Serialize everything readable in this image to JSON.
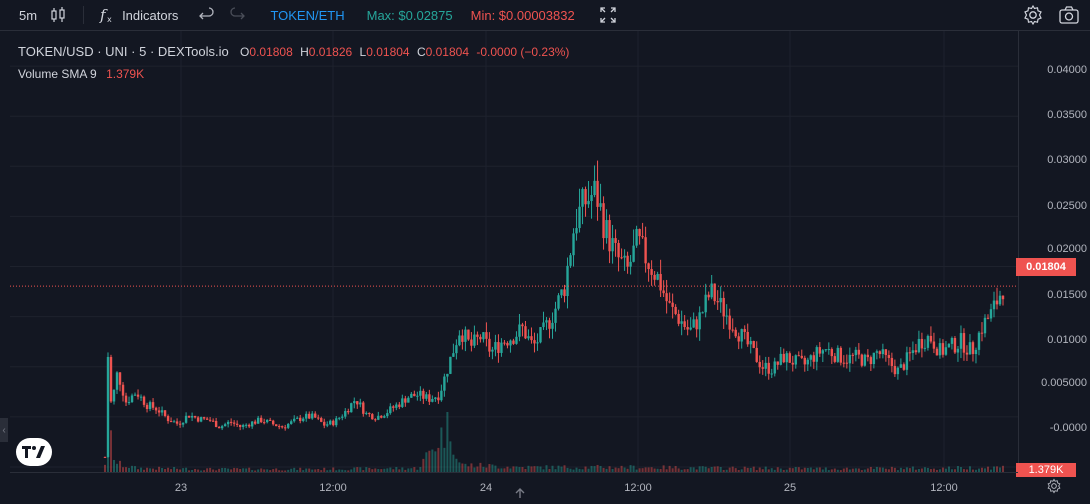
{
  "toolbar": {
    "interval": "5m",
    "indicators_label": "Indicators",
    "pair": "TOKEN/ETH",
    "max_label": "Max: $0.02875",
    "min_label": "Min: $0.00003832"
  },
  "legend": {
    "symbol": "TOKEN/USD · UNI · 5 · DEXTools.io",
    "o_key": "O",
    "o_val": "0.01808",
    "h_key": "H",
    "h_val": "0.01826",
    "l_key": "L",
    "l_val": "0.01804",
    "c_key": "C",
    "c_val": "0.01804",
    "change": "-0.0000 (−0.23%)",
    "volume_name": "Volume SMA 9",
    "volume_val": "1.379K"
  },
  "colors": {
    "background": "#131722",
    "up": "#26a69a",
    "down": "#ef5350",
    "grid": "#1e222d",
    "pair": "#2196f3"
  },
  "price_axis": {
    "ticks": [
      "0.04000",
      "0.03500",
      "0.03000",
      "0.02500",
      "0.02000",
      "0.01500",
      "0.01000",
      "0.005000",
      "-0.0000"
    ],
    "last_price": "0.01804",
    "volume_badge": "1.379K"
  },
  "time_axis": {
    "labels": [
      "23",
      "12:00",
      "24",
      "12:00",
      "25",
      "12:00"
    ]
  },
  "chart_data": {
    "type": "candlestick",
    "series_price": "0.01804",
    "ylim": [
      -0.0005,
      0.0435
    ],
    "y_ticks": [
      0.04,
      0.035,
      0.03,
      0.025,
      0.02,
      0.015,
      0.01,
      0.005,
      0.0
    ],
    "x_ticks": [
      "23",
      "12:00",
      "24",
      "12:00",
      "25",
      "12:00"
    ],
    "grid": true,
    "last_price": 0.01804,
    "price_path": [
      [
        0.0,
        0.001
      ],
      [
        0.3,
        0.0115
      ],
      [
        0.6,
        0.006
      ],
      [
        1.2,
        0.0095
      ],
      [
        2.0,
        0.0065
      ],
      [
        3.0,
        0.0075
      ],
      [
        4.0,
        0.0062
      ],
      [
        5.0,
        0.0058
      ],
      [
        6.0,
        0.0048
      ],
      [
        7.0,
        0.0043
      ],
      [
        8.0,
        0.0052
      ],
      [
        9.0,
        0.0048
      ],
      [
        10.0,
        0.0047
      ],
      [
        11.0,
        0.004
      ],
      [
        12.0,
        0.0045
      ],
      [
        13.0,
        0.004
      ],
      [
        14.0,
        0.0044
      ],
      [
        15.0,
        0.0047
      ],
      [
        16.0,
        0.0043
      ],
      [
        17.0,
        0.004
      ],
      [
        18.0,
        0.0045
      ],
      [
        19.0,
        0.005
      ],
      [
        20.0,
        0.005
      ],
      [
        21.0,
        0.0042
      ],
      [
        22.0,
        0.0045
      ],
      [
        23.0,
        0.0055
      ],
      [
        24.0,
        0.0068
      ],
      [
        25.0,
        0.0053
      ],
      [
        26.0,
        0.005
      ],
      [
        27.0,
        0.0055
      ],
      [
        28.0,
        0.0062
      ],
      [
        29.0,
        0.007
      ],
      [
        30.0,
        0.0072
      ],
      [
        31.0,
        0.0068
      ],
      [
        32.0,
        0.0072
      ],
      [
        33.0,
        0.0105
      ],
      [
        34.0,
        0.0138
      ],
      [
        35.0,
        0.012
      ],
      [
        36.0,
        0.013
      ],
      [
        37.0,
        0.0115
      ],
      [
        38.0,
        0.0125
      ],
      [
        39.0,
        0.013
      ],
      [
        40.0,
        0.0138
      ],
      [
        41.0,
        0.012
      ],
      [
        42.0,
        0.0135
      ],
      [
        43.0,
        0.0155
      ],
      [
        44.0,
        0.018
      ],
      [
        45.0,
        0.0245
      ],
      [
        46.0,
        0.0265
      ],
      [
        47.0,
        0.0275
      ],
      [
        48.0,
        0.0235
      ],
      [
        49.0,
        0.021
      ],
      [
        50.0,
        0.0195
      ],
      [
        51.0,
        0.0225
      ],
      [
        52.0,
        0.0205
      ],
      [
        53.0,
        0.0188
      ],
      [
        54.0,
        0.016
      ],
      [
        55.0,
        0.0148
      ],
      [
        56.0,
        0.0135
      ],
      [
        57.0,
        0.015
      ],
      [
        58.0,
        0.0175
      ],
      [
        59.0,
        0.016
      ],
      [
        60.0,
        0.0145
      ],
      [
        61.0,
        0.013
      ],
      [
        62.0,
        0.0115
      ],
      [
        63.0,
        0.01
      ],
      [
        64.0,
        0.0098
      ],
      [
        65.0,
        0.011
      ],
      [
        66.0,
        0.0105
      ],
      [
        67.0,
        0.0102
      ],
      [
        68.0,
        0.0112
      ],
      [
        69.0,
        0.0118
      ],
      [
        70.0,
        0.0112
      ],
      [
        71.0,
        0.0108
      ],
      [
        72.0,
        0.011
      ],
      [
        73.0,
        0.0105
      ],
      [
        74.0,
        0.0115
      ],
      [
        75.0,
        0.0105
      ],
      [
        76.0,
        0.0095
      ],
      [
        77.0,
        0.011
      ],
      [
        78.0,
        0.0125
      ],
      [
        79.0,
        0.013
      ],
      [
        80.0,
        0.0115
      ],
      [
        81.0,
        0.012
      ],
      [
        82.0,
        0.0125
      ],
      [
        83.0,
        0.0115
      ],
      [
        84.0,
        0.014
      ],
      [
        85.0,
        0.0155
      ],
      [
        86.0,
        0.018
      ]
    ],
    "volume_path": [
      [
        0.0,
        0.2
      ],
      [
        0.3,
        1.0
      ],
      [
        1.0,
        0.18
      ],
      [
        3.0,
        0.08
      ],
      [
        10.0,
        0.06
      ],
      [
        20.0,
        0.06
      ],
      [
        30.0,
        0.08
      ],
      [
        33.0,
        1.0
      ],
      [
        34.0,
        0.15
      ],
      [
        40.0,
        0.1
      ],
      [
        50.0,
        0.1
      ],
      [
        60.0,
        0.08
      ],
      [
        70.0,
        0.07
      ],
      [
        80.0,
        0.08
      ],
      [
        86.0,
        0.1
      ]
    ]
  }
}
